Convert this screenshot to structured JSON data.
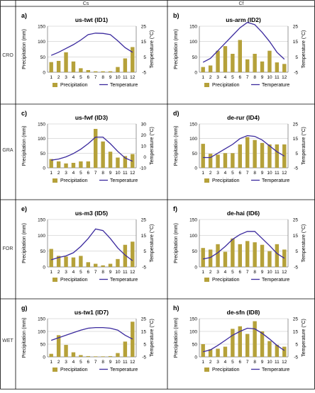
{
  "columns": [
    "Cs",
    "Cf"
  ],
  "rows": [
    "CRO",
    "GRA",
    "FOR",
    "WET"
  ],
  "legend": {
    "precip": "Precipitation",
    "temp": "Temperature"
  },
  "colors": {
    "bar": "#b5a13a",
    "line": "#3b2a9e",
    "grid": "#000000"
  },
  "chart_data": [
    {
      "type": "bar",
      "letter": "a)",
      "title": "us-twt (ID1)",
      "ylabel": "Precipitation (mm)",
      "y2label": "Temperature (°C)",
      "categories": [
        "1",
        "2",
        "3",
        "4",
        "5",
        "6",
        "7",
        "8",
        "9",
        "10",
        "11",
        "12"
      ],
      "ylim": [
        0,
        150
      ],
      "yticks": [
        0,
        50,
        100,
        150
      ],
      "y2lim": [
        -5,
        25
      ],
      "y2ticks": [
        -5,
        5,
        15,
        25
      ],
      "series": [
        {
          "name": "Precipitation",
          "type": "bar",
          "values": [
            33,
            37,
            65,
            35,
            13,
            7,
            3,
            3,
            3,
            17,
            45,
            82
          ]
        },
        {
          "name": "Temperature",
          "type": "line",
          "values": [
            6,
            8,
            10.5,
            13,
            16,
            19.5,
            20.5,
            20.3,
            19.5,
            15.5,
            11,
            8
          ]
        }
      ]
    },
    {
      "type": "bar",
      "letter": "b)",
      "title": "us-arm (ID2)",
      "ylabel": "Precipitation (mm)",
      "y2label": "Temperature (°C)",
      "categories": [
        "1",
        "2",
        "3",
        "4",
        "5",
        "6",
        "7",
        "8",
        "9",
        "10",
        "11",
        "12"
      ],
      "ylim": [
        0,
        150
      ],
      "yticks": [
        0,
        50,
        100,
        150
      ],
      "y2lim": [
        -5,
        25
      ],
      "y2ticks": [
        -5,
        5,
        15,
        25
      ],
      "series": [
        {
          "name": "Precipitation",
          "type": "bar",
          "values": [
            17,
            22,
            70,
            85,
            60,
            105,
            42,
            60,
            35,
            70,
            32,
            27
          ]
        },
        {
          "name": "Temperature",
          "type": "line",
          "values": [
            1.5,
            4,
            9,
            14,
            19,
            24,
            27.5,
            26,
            21,
            15,
            8,
            3.5
          ]
        }
      ]
    },
    {
      "type": "bar",
      "letter": "c)",
      "title": "us-fwf (ID3)",
      "ylabel": "Precipitation (mm)",
      "y2label": "Temperature (°C)",
      "categories": [
        "1",
        "2",
        "3",
        "4",
        "5",
        "6",
        "7",
        "8",
        "9",
        "10",
        "11",
        "12"
      ],
      "ylim": [
        0,
        150
      ],
      "yticks": [
        0,
        50,
        100,
        150
      ],
      "y2lim": [
        -10,
        30
      ],
      "y2ticks": [
        -10,
        0,
        10,
        20,
        30
      ],
      "series": [
        {
          "name": "Precipitation",
          "type": "bar",
          "values": [
            30,
            22,
            15,
            17,
            22,
            22,
            133,
            90,
            55,
            35,
            40,
            47
          ]
        },
        {
          "name": "Temperature",
          "type": "line",
          "values": [
            -3,
            -2,
            0,
            3,
            7,
            12,
            18,
            18,
            12,
            5,
            -1,
            -4
          ]
        }
      ]
    },
    {
      "type": "bar",
      "letter": "d)",
      "title": "de-rur (ID4)",
      "ylabel": "Precipitation (mm)",
      "y2label": "Temperature (°C)",
      "categories": [
        "1",
        "2",
        "3",
        "4",
        "5",
        "6",
        "7",
        "8",
        "9",
        "10",
        "11",
        "12"
      ],
      "ylim": [
        0,
        150
      ],
      "yticks": [
        0,
        50,
        100,
        150
      ],
      "y2lim": [
        -5,
        25
      ],
      "y2ticks": [
        -5,
        5,
        15,
        25
      ],
      "series": [
        {
          "name": "Precipitation",
          "type": "bar",
          "values": [
            82,
            48,
            45,
            50,
            50,
            80,
            105,
            95,
            85,
            80,
            80,
            80
          ]
        },
        {
          "name": "Temperature",
          "type": "line",
          "values": [
            2,
            2,
            5,
            8,
            11,
            15,
            17,
            16.5,
            14,
            10,
            6,
            3
          ]
        }
      ]
    },
    {
      "type": "bar",
      "letter": "e)",
      "title": "us-m3 (ID5)",
      "ylabel": "Precipitation (mm)",
      "y2label": "Temperature (°C)",
      "categories": [
        "1",
        "2",
        "3",
        "4",
        "5",
        "6",
        "7",
        "8",
        "9",
        "10",
        "11",
        "12"
      ],
      "ylim": [
        0,
        150
      ],
      "yticks": [
        0,
        50,
        100,
        150
      ],
      "y2lim": [
        -5,
        25
      ],
      "y2ticks": [
        -5,
        5,
        15,
        25
      ],
      "series": [
        {
          "name": "Precipitation",
          "type": "bar",
          "values": [
            57,
            35,
            33,
            30,
            35,
            15,
            10,
            5,
            10,
            25,
            70,
            80
          ]
        },
        {
          "name": "Temperature",
          "type": "line",
          "values": [
            -0.5,
            1,
            2,
            4,
            8,
            13,
            19,
            18,
            13,
            7,
            2.5,
            -1
          ]
        }
      ]
    },
    {
      "type": "bar",
      "letter": "f)",
      "title": "de-hai (ID6)",
      "ylabel": "Precipitation (mm)",
      "y2label": "Temperature (°C)",
      "categories": [
        "1",
        "2",
        "3",
        "4",
        "5",
        "6",
        "7",
        "8",
        "9",
        "10",
        "11",
        "12"
      ],
      "ylim": [
        0,
        150
      ],
      "yticks": [
        0,
        50,
        100,
        150
      ],
      "y2lim": [
        -5,
        25
      ],
      "y2ticks": [
        -5,
        5,
        15,
        25
      ],
      "series": [
        {
          "name": "Precipitation",
          "type": "bar",
          "values": [
            60,
            55,
            72,
            48,
            90,
            72,
            82,
            78,
            70,
            50,
            72,
            55
          ]
        },
        {
          "name": "Temperature",
          "type": "line",
          "values": [
            0,
            1,
            4,
            8,
            12.5,
            15.5,
            17.5,
            17.5,
            13,
            8.5,
            3.5,
            0.5
          ]
        }
      ]
    },
    {
      "type": "bar",
      "letter": "g)",
      "title": "us-tw1 (ID7)",
      "ylabel": "Precipitation (mm)",
      "y2label": "Temperature (°C)",
      "categories": [
        "1",
        "2",
        "3",
        "4",
        "5",
        "6",
        "7",
        "8",
        "9",
        "10",
        "11",
        "12"
      ],
      "ylim": [
        0,
        150
      ],
      "yticks": [
        0,
        50,
        100,
        150
      ],
      "y2lim": [
        -5,
        25
      ],
      "y2ticks": [
        -5,
        5,
        15,
        25
      ],
      "series": [
        {
          "name": "Precipitation",
          "type": "bar",
          "values": [
            12,
            85,
            47,
            18,
            7,
            3,
            2,
            2,
            3,
            15,
            60,
            138
          ]
        },
        {
          "name": "Temperature",
          "type": "line",
          "values": [
            8,
            10,
            12,
            14,
            16,
            17.5,
            18,
            18,
            17.5,
            16,
            12,
            9
          ]
        }
      ]
    },
    {
      "type": "bar",
      "letter": "h)",
      "title": "de-sfn (ID8)",
      "ylabel": "Precipitation (mm)",
      "y2label": "Temperature (°C)",
      "categories": [
        "1",
        "2",
        "3",
        "4",
        "5",
        "6",
        "7",
        "8",
        "9",
        "10",
        "11",
        "12"
      ],
      "ylim": [
        0,
        150
      ],
      "yticks": [
        0,
        50,
        100,
        150
      ],
      "y2lim": [
        -5,
        25
      ],
      "y2ticks": [
        -5,
        5,
        15,
        25
      ],
      "series": [
        {
          "name": "Precipitation",
          "type": "bar",
          "values": [
            50,
            30,
            32,
            40,
            110,
            120,
            90,
            140,
            100,
            62,
            47,
            40
          ]
        },
        {
          "name": "Temperature",
          "type": "line",
          "values": [
            -1,
            0.5,
            4,
            8,
            12,
            15,
            17.5,
            17,
            13.5,
            9,
            4,
            0
          ]
        }
      ]
    }
  ]
}
